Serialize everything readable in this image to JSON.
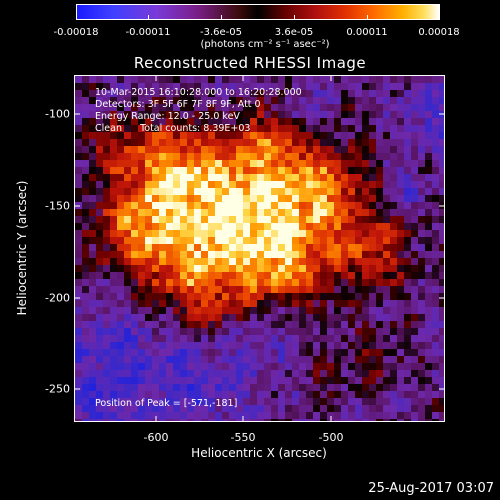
{
  "chart_data": {
    "type": "heatmap",
    "title": "Reconstructed RHESSI Image",
    "xlabel": "Heliocentric X (arcsec)",
    "ylabel": "Heliocentric Y (arcsec)",
    "xlim": [
      -645,
      -542
    ],
    "ylim": [
      -270,
      -84
    ],
    "x_ticks": [
      "-600",
      "-550",
      "-500"
    ],
    "y_ticks": [
      "-100",
      "-150",
      "-200",
      "-250"
    ],
    "colorbar": {
      "ticks": [
        "-0.00018",
        "-0.00011",
        "-3.6e-05",
        "3.6e-05",
        "0.00011",
        "0.00018"
      ],
      "unit_label": "(photons cm⁻² s⁻¹ asec⁻²)"
    },
    "annotations": [
      "10-Mar-2015 16:10:28.000 to 16:20:28.000",
      "Detectors: 3F 5F 6F 7F 8F 9F, Att 0",
      "Energy Range: 12.0 - 25.0 keV",
      "Clean      Total counts: 8.39E+03"
    ],
    "peak_label": "Position of Peak = [-571,-181]",
    "peak_position": [
      -571,
      -181
    ],
    "colors": {
      "negative_low": "#1a1aff",
      "negative_mid": "#7a1f8a",
      "zero": "#000000",
      "positive_mid": "#d02000",
      "positive_high": "#ffd040",
      "max": "#ffffff"
    }
  },
  "footer": {
    "timestamp": "25-Aug-2017 03:07"
  }
}
